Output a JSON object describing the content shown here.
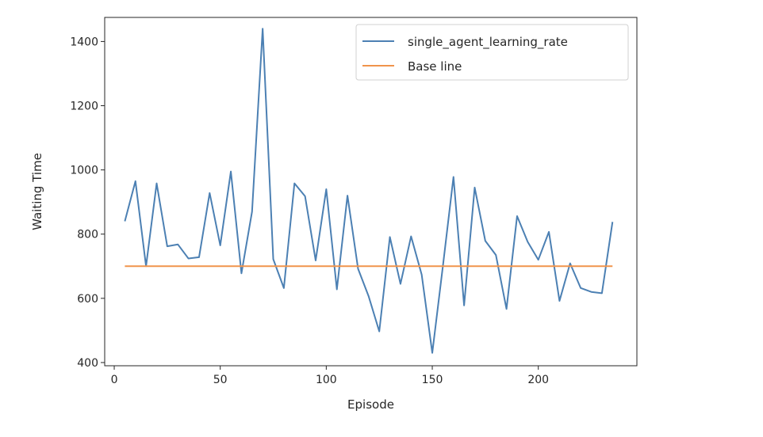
{
  "chart_data": {
    "type": "line",
    "title": "",
    "xlabel": "Episode",
    "ylabel": "Waiting Time",
    "xlim": [
      -4.5,
      246.5
    ],
    "ylim": [
      390,
      1475
    ],
    "xticks": [
      0,
      50,
      100,
      150,
      200
    ],
    "yticks": [
      400,
      600,
      800,
      1000,
      1200,
      1400
    ],
    "grid": false,
    "legend_position": "top-right",
    "series": [
      {
        "name": "single_agent_learning_rate",
        "color": "#4c80b3",
        "x": [
          5,
          10,
          15,
          20,
          25,
          30,
          35,
          40,
          45,
          50,
          55,
          60,
          65,
          70,
          75,
          80,
          85,
          90,
          95,
          100,
          105,
          110,
          115,
          120,
          125,
          130,
          135,
          140,
          145,
          150,
          155,
          160,
          165,
          170,
          175,
          180,
          185,
          190,
          195,
          200,
          205,
          210,
          215,
          220,
          225,
          230,
          235
        ],
        "values": [
          840,
          965,
          700,
          958,
          762,
          768,
          724,
          728,
          928,
          765,
          995,
          678,
          870,
          1440,
          722,
          632,
          958,
          918,
          718,
          940,
          628,
          920,
          692,
          606,
          497,
          791,
          645,
          793,
          674,
          430,
          700,
          978,
          578,
          945,
          779,
          735,
          567,
          856,
          776,
          720,
          807,
          592,
          709,
          632,
          620,
          616,
          838
        ]
      },
      {
        "name": "Base line",
        "color": "#f0944c",
        "x": [
          5,
          235
        ],
        "values": [
          700,
          700
        ]
      }
    ]
  }
}
